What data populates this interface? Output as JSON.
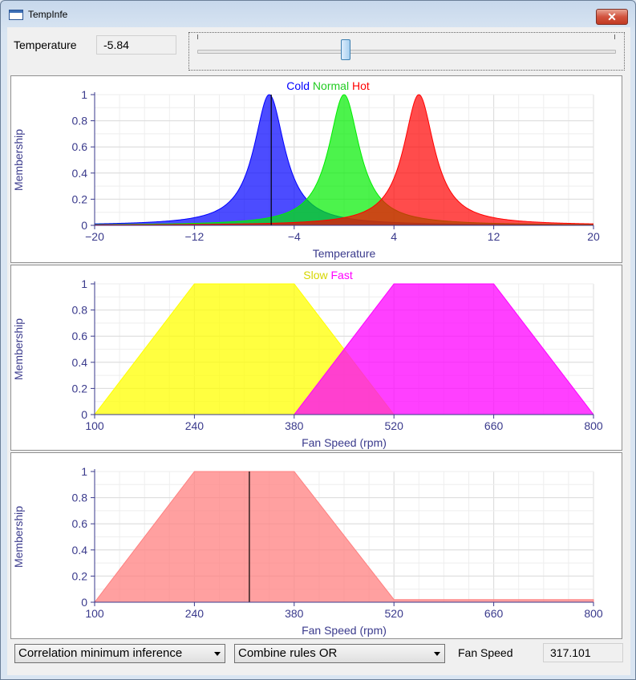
{
  "window": {
    "title": "TempInfe",
    "close_glyph": "✕"
  },
  "controls": {
    "temperature_label": "Temperature",
    "temperature_value": "-5.84",
    "slider_fraction": 0.355,
    "inference_method": "Correlation minimum inference",
    "combine_method": "Combine rules OR",
    "fan_speed_label": "Fan Speed",
    "fan_speed_value": "317.101"
  },
  "chart_data": [
    {
      "type": "area",
      "xlabel": "Temperature",
      "ylabel": "Membership",
      "xlim": [
        -20,
        20
      ],
      "ylim": [
        0,
        1
      ],
      "xticks": [
        -20,
        -12,
        -4,
        4,
        12,
        20
      ],
      "xtick_labels": [
        "−20",
        "−12",
        "−4",
        "4",
        "12",
        "20"
      ],
      "yticks": [
        0,
        0.2,
        0.4,
        0.6,
        0.8,
        1
      ],
      "ytick_labels": [
        "0",
        "0.2",
        "0.4",
        "0.6",
        "0.8",
        "1"
      ],
      "grid": true,
      "legend": "top-center",
      "series": [
        {
          "name": "Cold",
          "shape": "bell",
          "center": -6,
          "halfwidth": 1.5,
          "color": "#0000ff"
        },
        {
          "name": "Normal",
          "shape": "bell",
          "center": 0,
          "halfwidth": 1.5,
          "color": "#00ee00"
        },
        {
          "name": "Hot",
          "shape": "bell",
          "center": 6,
          "halfwidth": 1.5,
          "color": "#ff0000"
        }
      ],
      "marker_x": -5.84
    },
    {
      "type": "area",
      "xlabel": "Fan Speed (rpm)",
      "ylabel": "Membership",
      "xlim": [
        100,
        800
      ],
      "ylim": [
        0,
        1
      ],
      "xticks": [
        100,
        240,
        380,
        520,
        660,
        800
      ],
      "xtick_labels": [
        "100",
        "240",
        "380",
        "520",
        "660",
        "800"
      ],
      "yticks": [
        0,
        0.2,
        0.4,
        0.6,
        0.8,
        1
      ],
      "ytick_labels": [
        "0",
        "0.2",
        "0.4",
        "0.6",
        "0.8",
        "1"
      ],
      "grid": true,
      "legend": "top-center",
      "series": [
        {
          "name": "Slow",
          "shape": "trapezoid",
          "points": [
            [
              100,
              0
            ],
            [
              240,
              1
            ],
            [
              380,
              1
            ],
            [
              520,
              0
            ]
          ],
          "color": "#ffff00"
        },
        {
          "name": "Fast",
          "shape": "trapezoid",
          "points": [
            [
              380,
              0
            ],
            [
              520,
              1
            ],
            [
              660,
              1
            ],
            [
              800,
              0
            ]
          ],
          "color": "#ff00ff"
        }
      ]
    },
    {
      "type": "area",
      "xlabel": "Fan Speed (rpm)",
      "ylabel": "Membership",
      "xlim": [
        100,
        800
      ],
      "ylim": [
        0,
        1
      ],
      "xticks": [
        100,
        240,
        380,
        520,
        660,
        800
      ],
      "xtick_labels": [
        "100",
        "240",
        "380",
        "520",
        "660",
        "800"
      ],
      "yticks": [
        0,
        0.2,
        0.4,
        0.6,
        0.8,
        1
      ],
      "ytick_labels": [
        "0",
        "0.2",
        "0.4",
        "0.6",
        "0.8",
        "1"
      ],
      "grid": true,
      "series": [
        {
          "shape": "polygon",
          "points": [
            [
              100,
              0
            ],
            [
              240,
              1
            ],
            [
              380,
              1
            ],
            [
              520,
              0.02
            ],
            [
              800,
              0.02
            ],
            [
              800,
              0
            ]
          ],
          "color": "#ff8080"
        }
      ],
      "marker_x": 317.101
    }
  ]
}
